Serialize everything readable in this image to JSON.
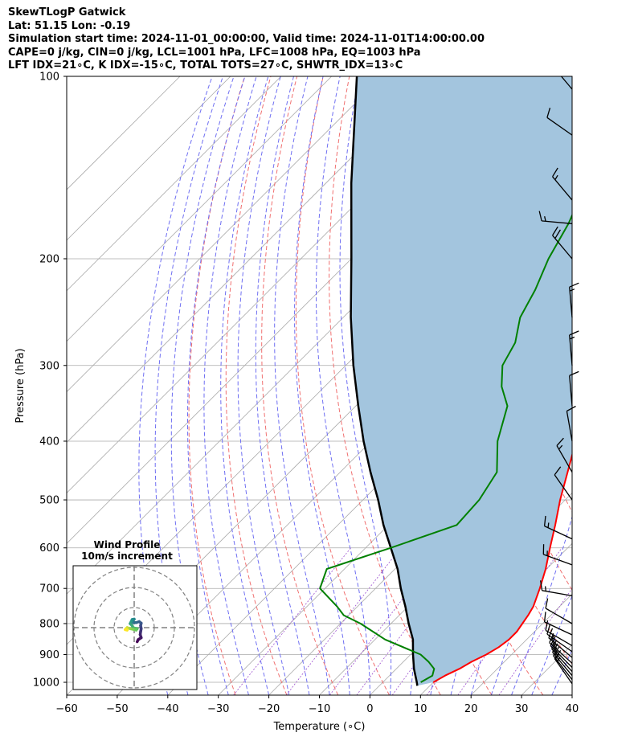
{
  "header": {
    "line1": "SkewTLogP Gatwick",
    "line2": "Lat: 51.15   Lon: -0.19",
    "line3": "Simulation start time: 2024-11-01_00:00:00, Valid time: 2024-11-01T14:00:00.00",
    "line4": "CAPE=0 j/kg, CIN=0 j/kg, LCL=1001 hPa, LFC=1008 hPa, EQ=1003 hPa",
    "line5": "LFT IDX=21∘C, K IDX=-15∘C, TOTAL TOTS=27∘C, SHWTR_IDX=13∘C"
  },
  "chart_data": {
    "type": "line",
    "subtype": "skew-T log-P diagram",
    "xlabel": "Temperature (∘C)",
    "ylabel": "Pressure (hPa)",
    "xlim": [
      -60,
      40
    ],
    "ylim": [
      1050,
      100
    ],
    "y_scale": "log",
    "x_ticks": [
      -60,
      -50,
      -40,
      -30,
      -20,
      -10,
      0,
      10,
      20,
      30,
      40
    ],
    "y_ticks": [
      1000,
      900,
      800,
      700,
      600,
      500,
      400,
      300,
      200,
      100
    ],
    "grid": true,
    "colors": {
      "temperature": "#ff0000",
      "dewpoint": "#008000",
      "parcel": "#000000",
      "cape_fill": "#a3c5de",
      "isotherm": "#aaaaaa",
      "dry_adiabat": "#f07070",
      "moist_adiabat": "#6f6ff2",
      "mixing_ratio": "#9c4fcf"
    },
    "series": [
      {
        "key": "temperature",
        "points": [
          [
            1000,
            10.0
          ],
          [
            975,
            11.0
          ],
          [
            950,
            12.5
          ],
          [
            925,
            13.5
          ],
          [
            900,
            15.0
          ],
          [
            875,
            16.0
          ],
          [
            850,
            16.5
          ],
          [
            825,
            16.5
          ],
          [
            800,
            16.0
          ],
          [
            775,
            15.5
          ],
          [
            750,
            14.8
          ],
          [
            700,
            12.5
          ],
          [
            650,
            9.8
          ],
          [
            600,
            6.5
          ],
          [
            550,
            3.0
          ],
          [
            500,
            -1.0
          ],
          [
            450,
            -5.0
          ],
          [
            400,
            -9.5
          ],
          [
            350,
            -15.0
          ],
          [
            300,
            -22.0
          ],
          [
            275,
            -26.5
          ],
          [
            250,
            -31.0
          ],
          [
            225,
            -36.0
          ],
          [
            200,
            -42.0
          ],
          [
            175,
            -48.0
          ],
          [
            150,
            -50.5
          ],
          [
            125,
            -55.5
          ],
          [
            112,
            -58.0
          ],
          [
            100,
            -60.0
          ]
        ]
      },
      {
        "key": "dewpoint",
        "points": [
          [
            1000,
            7.5
          ],
          [
            975,
            8.5
          ],
          [
            950,
            7.5
          ],
          [
            925,
            5.0
          ],
          [
            900,
            2.0
          ],
          [
            850,
            -8.0
          ],
          [
            800,
            -16.0
          ],
          [
            775,
            -21.0
          ],
          [
            750,
            -24.0
          ],
          [
            700,
            -31.0
          ],
          [
            650,
            -33.5
          ],
          [
            600,
            -25.0
          ],
          [
            550,
            -16.5
          ],
          [
            500,
            -17.0
          ],
          [
            450,
            -19.0
          ],
          [
            400,
            -25.0
          ],
          [
            350,
            -30.0
          ],
          [
            325,
            -35.0
          ],
          [
            300,
            -39.0
          ],
          [
            275,
            -41.0
          ],
          [
            250,
            -45.0
          ],
          [
            225,
            -47.5
          ],
          [
            200,
            -51.0
          ],
          [
            175,
            -54.0
          ],
          [
            150,
            -58.5
          ],
          [
            125,
            -63.0
          ],
          [
            112,
            -65.0
          ],
          [
            100,
            -67.5
          ]
        ]
      },
      {
        "key": "parcel",
        "points": [
          [
            1013,
            7.5
          ],
          [
            1001,
            6.8
          ],
          [
            950,
            3.5
          ],
          [
            900,
            0.5
          ],
          [
            850,
            -2.5
          ],
          [
            800,
            -6.5
          ],
          [
            750,
            -10.5
          ],
          [
            700,
            -15.0
          ],
          [
            650,
            -19.5
          ],
          [
            600,
            -25.0
          ],
          [
            550,
            -31.0
          ],
          [
            500,
            -37.0
          ],
          [
            450,
            -44.0
          ],
          [
            400,
            -51.5
          ],
          [
            350,
            -59.5
          ],
          [
            300,
            -68.5
          ],
          [
            250,
            -78.5
          ],
          [
            200,
            -90.0
          ],
          [
            150,
            -105.0
          ],
          [
            100,
            -125.0
          ]
        ]
      }
    ],
    "wind_barbs": [
      {
        "p": 1005,
        "dir": 325,
        "spd": 14
      },
      {
        "p": 990,
        "dir": 322,
        "spd": 14
      },
      {
        "p": 975,
        "dir": 320,
        "spd": 15
      },
      {
        "p": 960,
        "dir": 318,
        "spd": 15
      },
      {
        "p": 945,
        "dir": 315,
        "spd": 15
      },
      {
        "p": 930,
        "dir": 312,
        "spd": 14
      },
      {
        "p": 910,
        "dir": 310,
        "spd": 13
      },
      {
        "p": 890,
        "dir": 305,
        "spd": 12
      },
      {
        "p": 870,
        "dir": 300,
        "spd": 11
      },
      {
        "p": 835,
        "dir": 295,
        "spd": 11
      },
      {
        "p": 800,
        "dir": 300,
        "spd": 12
      },
      {
        "p": 720,
        "dir": 280,
        "spd": 14
      },
      {
        "p": 640,
        "dir": 290,
        "spd": 14
      },
      {
        "p": 580,
        "dir": 295,
        "spd": 16
      },
      {
        "p": 500,
        "dir": 325,
        "spd": 10
      },
      {
        "p": 450,
        "dir": 330,
        "spd": 13
      },
      {
        "p": 400,
        "dir": 350,
        "spd": 12
      },
      {
        "p": 350,
        "dir": 355,
        "spd": 12
      },
      {
        "p": 300,
        "dir": 355,
        "spd": 15
      },
      {
        "p": 250,
        "dir": 355,
        "spd": 14
      },
      {
        "p": 200,
        "dir": 320,
        "spd": 18
      },
      {
        "p": 175,
        "dir": 275,
        "spd": 16
      },
      {
        "p": 160,
        "dir": 320,
        "spd": 15
      },
      {
        "p": 125,
        "dir": 305,
        "spd": 12
      },
      {
        "p": 105,
        "dir": 320,
        "spd": 12
      }
    ],
    "inset": {
      "title": "Wind Profile",
      "subtitle": "10m/s increment",
      "ring_step_ms": 10,
      "ring_count": 3,
      "hodograph_uv": [
        [
          1.5,
          -7.0
        ],
        [
          2.0,
          -6.0
        ],
        [
          3.5,
          -5.0
        ],
        [
          3.0,
          -3.5
        ],
        [
          3.2,
          -2.0
        ],
        [
          3.5,
          -0.5
        ],
        [
          3.2,
          1.0
        ],
        [
          3.5,
          2.2
        ],
        [
          2.5,
          3.0
        ],
        [
          1.0,
          2.5
        ],
        [
          -0.5,
          2.5
        ],
        [
          -0.8,
          3.5
        ],
        [
          0.0,
          4.2
        ],
        [
          -1.0,
          4.0
        ],
        [
          -1.5,
          3.0
        ],
        [
          -2.0,
          2.0
        ],
        [
          -1.0,
          1.0
        ],
        [
          -0.5,
          0.0
        ],
        [
          0.5,
          -0.3
        ],
        [
          1.5,
          -0.5
        ],
        [
          1.0,
          -1.2
        ],
        [
          -0.5,
          -0.8
        ],
        [
          -2.0,
          -0.5
        ],
        [
          -3.0,
          -0.2
        ],
        [
          -3.5,
          0.0
        ],
        [
          -4.0,
          -0.5
        ],
        [
          -3.5,
          -1.2
        ],
        [
          -4.5,
          -1.0
        ]
      ]
    }
  }
}
